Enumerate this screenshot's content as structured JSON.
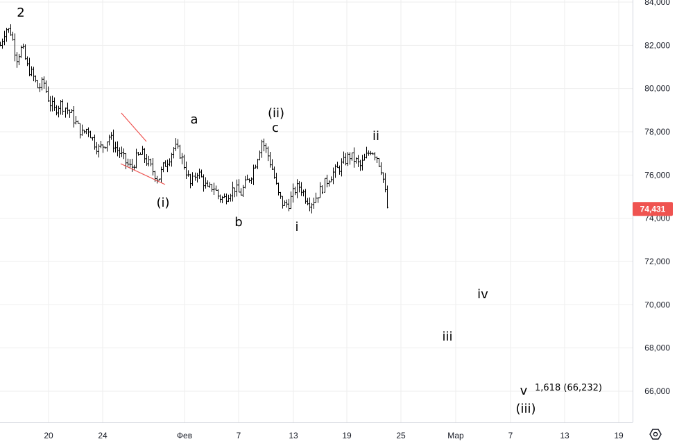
{
  "chart_data": {
    "type": "candlestick",
    "y_axis": {
      "ticks": [
        "84,000",
        "82,000",
        "80,000",
        "78,000",
        "76,000",
        "74,000",
        "72,000",
        "70,000",
        "68,000",
        "66,000"
      ],
      "tick_values": [
        84000,
        82000,
        80000,
        78000,
        76000,
        74000,
        72000,
        70000,
        68000,
        66000
      ],
      "ylim": [
        64700,
        84200
      ]
    },
    "x_axis": {
      "ticks": [
        "20",
        "24",
        "Фев",
        "7",
        "13",
        "19",
        "25",
        "Мар",
        "7",
        "13",
        "19"
      ]
    },
    "grid": true,
    "last_price": {
      "label": "74,431",
      "value": 74431,
      "color": "#ef5350"
    },
    "price_path": [
      82000,
      82800,
      82600,
      81400,
      81900,
      81000,
      80600,
      80000,
      80300,
      79400,
      79000,
      79300,
      79100,
      78800,
      78300,
      77900,
      78200,
      77600,
      77200,
      77400,
      77800,
      77300,
      77000,
      76600,
      76300,
      76800,
      77000,
      76600,
      76200,
      75800,
      76400,
      76800,
      77300,
      77000,
      76300,
      75500,
      76200,
      75800,
      75300,
      75500,
      75000,
      74900,
      75200,
      75400,
      75100,
      75600,
      76000,
      76700,
      77600,
      77000,
      76200,
      75100,
      74600,
      74700,
      75300,
      75500,
      75000,
      74700,
      75000,
      75400,
      75800,
      76100,
      76300,
      76600,
      76900,
      76700,
      76400,
      76800,
      77200,
      76900,
      76200,
      74500
    ],
    "wave_labels": [
      "2",
      "a",
      "(i)",
      "b",
      "(ii)",
      "c",
      "i",
      "ii",
      "iii",
      "iv",
      "v",
      "(iii)"
    ],
    "fib_label": "1,618 (66,232)",
    "colors": {
      "candle": "#000000",
      "channel": "#ef5350",
      "grid": "#eeeeee"
    }
  },
  "settings_icon": "gear-icon"
}
